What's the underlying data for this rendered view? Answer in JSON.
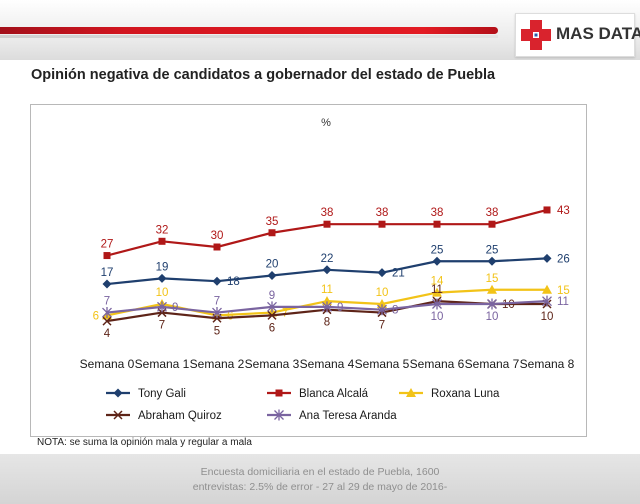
{
  "brand": {
    "name": "MAS DATA",
    "colors": {
      "bar_red": "#e31b23",
      "cross_red": "#d9232d",
      "cross_blue": "#2b5ca8"
    }
  },
  "page_title": "Opinión negativa de candidatos a gobernador del estado de Puebla",
  "note": "NOTA:  se suma la opinión mala y regular a mala",
  "footer": {
    "line1": "Encuesta domiciliaria en el estado de Puebla, 1600",
    "line2": "entrevistas: 2.5% de error - 27 al 29 de mayo de 2016-"
  },
  "chart_data": {
    "type": "line",
    "title": "%",
    "categories": [
      "Semana 0",
      "Semana 1",
      "Semana 2",
      "Semana 3",
      "Semana 4",
      "Semana 5",
      "Semana 6",
      "Semana 7",
      "Semana 8"
    ],
    "ylim": [
      0,
      45
    ],
    "grid": false,
    "legend_position": "bottom",
    "series": [
      {
        "name": "Tony Gali",
        "color": "#1f3f6e",
        "marker": "diamond",
        "values": [
          17,
          19,
          18,
          20,
          22,
          21,
          25,
          25,
          26
        ]
      },
      {
        "name": "Blanca Alcalá",
        "color": "#b01818",
        "marker": "square",
        "values": [
          27,
          32,
          30,
          35,
          38,
          38,
          38,
          38,
          43
        ]
      },
      {
        "name": "Roxana Luna",
        "color": "#f2c318",
        "marker": "triangle",
        "values": [
          6,
          10,
          6,
          7,
          11,
          10,
          14,
          15,
          15
        ]
      },
      {
        "name": "Abraham Quiroz",
        "color": "#5e2418",
        "marker": "x",
        "values": [
          4,
          7,
          5,
          6,
          8,
          7,
          11,
          10,
          10
        ]
      },
      {
        "name": "Ana Teresa Aranda",
        "color": "#7a64a0",
        "marker": "star",
        "values": [
          7,
          9,
          7,
          9,
          9,
          8,
          10,
          10,
          11
        ]
      }
    ]
  }
}
